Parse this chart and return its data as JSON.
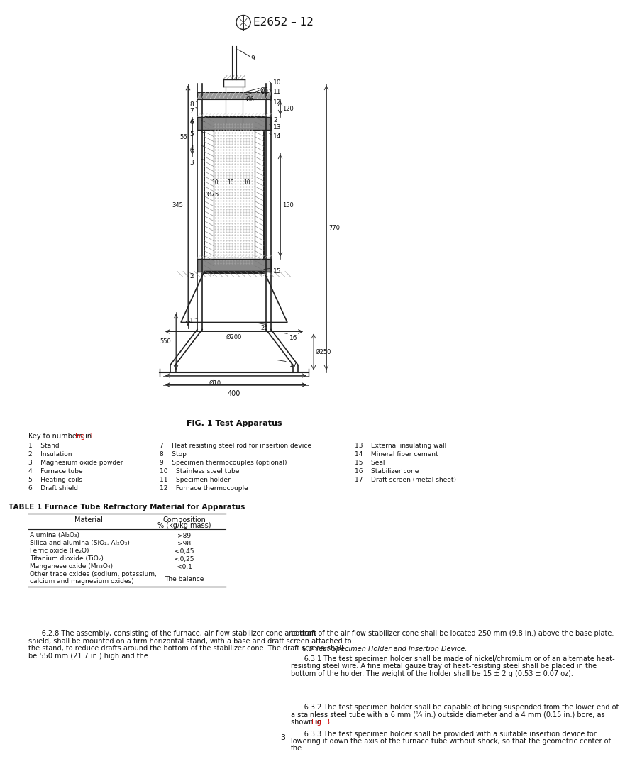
{
  "header_text": "E2652 – 12",
  "fig_caption": "FIG. 1 Test Apparatus",
  "key_intro": "Key to numbers in ",
  "key_intro_link": "Fig. 1",
  "key_col1": [
    "1    Stand",
    "2    Insulation",
    "3    Magnesium oxide powder",
    "4    Furnace tube",
    "5    Heating coils",
    "6    Draft shield"
  ],
  "key_col2": [
    "7    Heat resisting steel rod for insertion device",
    "8    Stop",
    "9    Specimen thermocouples (optional)",
    "10    Stainless steel tube",
    "11    Specimen holder",
    "12    Furnace thermocouple"
  ],
  "key_col3": [
    "13    External insulating wall",
    "14    Mineral fiber cement",
    "15    Seal",
    "16    Stabilizer cone",
    "17    Draft screen (metal sheet)"
  ],
  "table_title": "TABLE 1 Furnace Tube Refractory Material for Apparatus",
  "table_col1_header": "Material",
  "table_col2_header": "Composition\n% (kg/kg mass)",
  "table_rows": [
    [
      "Alumina (Al₂O₃)",
      ">89"
    ],
    [
      "Silica and alumina (SiO₂, Al₂O₃)",
      ">98"
    ],
    [
      "Ferric oxide (Fe₂O)",
      "<0,45"
    ],
    [
      "Titanium dioxide (TiO₂)",
      "<0,25"
    ],
    [
      "Manganese oxide (Mn₃O₄)",
      "<0,1"
    ],
    [
      "Other trace oxides (sodium, potassium,\ncalcium and magnesium oxides)",
      "The balance"
    ]
  ],
  "para_628": "      6.2.8 The assembly, consisting of the furnace, air flow stabilizer cone and draft shield, shall be mounted on a firm horizontal stand, with a base and draft screen attached to the stand, to reduce drafts around the bottom of the stabilizer cone. The draft screen shall be 550 mm (21.7 in.) high and the",
  "para_628_right": "bottom of the air flow stabilizer cone shall be located 250 mm (9.8 in.) above the base plate.",
  "para_63_head": "6.3 Test Specimen Holder and Insertion Device:",
  "para_631": "      6.3.1 The test specimen holder shall be made of nickel/chromium or of an alternate heat-resisting steel wire. A fine metal gauze tray of heat-resisting steel shall be placed in the bottom of the holder. The weight of the holder shall be 15 ± 2 g (0.53 ± 0.07 oz).",
  "para_632": "      6.3.2 The test specimen holder shall be capable of being suspended from the lower end of a stainless steel tube with a 6 mm (¼ in.) outside diameter and a 4 mm (0.15 in.) bore, as shown in ",
  "para_632_link": "Fig. 3.",
  "para_633": "      6.3.3 The test specimen holder shall be provided with a suitable insertion device for lowering it down the axis of the furnace tube without shock, so that the geometric center of the",
  "page_number": "3",
  "link_color": "#cc0000",
  "text_color": "#000000",
  "bg_color": "#ffffff"
}
